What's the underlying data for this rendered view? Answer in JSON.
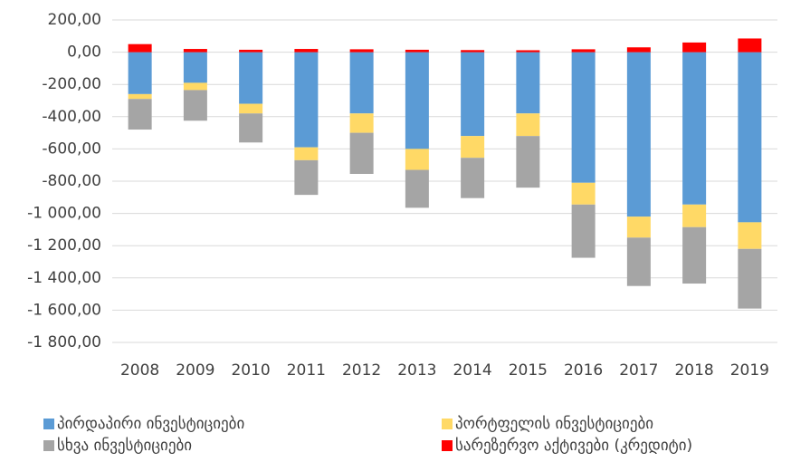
{
  "chart_data": {
    "type": "stacked_bar",
    "categories": [
      "2008",
      "2009",
      "2010",
      "2011",
      "2012",
      "2013",
      "2014",
      "2015",
      "2016",
      "2017",
      "2018",
      "2019"
    ],
    "series": [
      {
        "name": "პირდაპირი ინვესტიციები",
        "color": "#5b9bd5",
        "values": [
          -260,
          -190,
          -320,
          -590,
          -380,
          -600,
          -520,
          -380,
          -810,
          -1020,
          -945,
          -1055
        ]
      },
      {
        "name": "პორტფელის ინვესტიციები",
        "color": "#ffd966",
        "values": [
          -30,
          -45,
          -60,
          -80,
          -120,
          -130,
          -135,
          -140,
          -135,
          -130,
          -140,
          -165
        ]
      },
      {
        "name": "სხვა ინვესტიციები",
        "color": "#a5a5a5",
        "values": [
          -190,
          -190,
          -180,
          -215,
          -255,
          -235,
          -250,
          -320,
          -330,
          -300,
          -350,
          -370
        ]
      },
      {
        "name": "სარეზერვო აქტივები (კრედიტი)",
        "color": "#ff0000",
        "values": [
          50,
          20,
          15,
          20,
          18,
          15,
          13,
          12,
          18,
          30,
          60,
          85
        ]
      }
    ],
    "ylim": [
      -1800,
      200
    ],
    "yticks": [
      {
        "value": 200,
        "label": "200,00"
      },
      {
        "value": 0,
        "label": "0,00"
      },
      {
        "value": -200,
        "label": "-200,00"
      },
      {
        "value": -400,
        "label": "-400,00"
      },
      {
        "value": -600,
        "label": "-600,00"
      },
      {
        "value": -800,
        "label": "-800,00"
      },
      {
        "value": -1000,
        "label": "-1 000,00"
      },
      {
        "value": -1200,
        "label": "-1 200,00"
      },
      {
        "value": -1400,
        "label": "-1 400,00"
      },
      {
        "value": -1600,
        "label": "-1 600,00"
      },
      {
        "value": -1800,
        "label": "-1 800,00"
      }
    ],
    "grid": true,
    "legend": "bottom"
  }
}
